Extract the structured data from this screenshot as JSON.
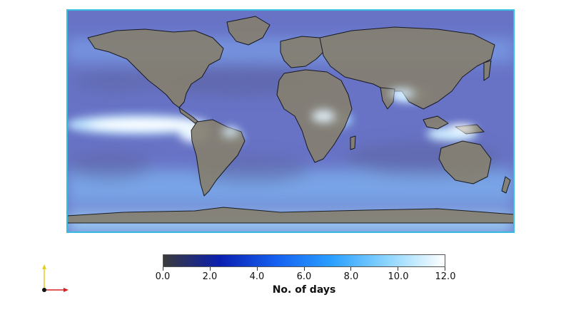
{
  "map": {
    "projection": "equirectangular",
    "extent": {
      "lon": [
        -180,
        180
      ],
      "lat": [
        -90,
        90
      ]
    },
    "colormap": {
      "stops": [
        "#3a3a3a",
        "#0b1fb0",
        "#1560f0",
        "#2aa0ff",
        "#8fd6ff",
        "#ffffff"
      ]
    },
    "ocean_base_color": "#6a74c8",
    "land_base_color": "#8a8270",
    "coastline_color": "#111111",
    "frame_color": "#38bde0"
  },
  "colorbar": {
    "title": "No. of days",
    "range": [
      0,
      12
    ],
    "ticks": [
      {
        "value": 0,
        "label": "0.0"
      },
      {
        "value": 2,
        "label": "2.0"
      },
      {
        "value": 4,
        "label": "4.0"
      },
      {
        "value": 6,
        "label": "6.0"
      },
      {
        "value": 8,
        "label": "8.0"
      },
      {
        "value": 10,
        "label": "10.0"
      },
      {
        "value": 12,
        "label": "12.0"
      }
    ]
  },
  "orientation_axes": {
    "x_color": "#d62020",
    "y_color": "#e0d020",
    "origin_color": "#111111"
  }
}
